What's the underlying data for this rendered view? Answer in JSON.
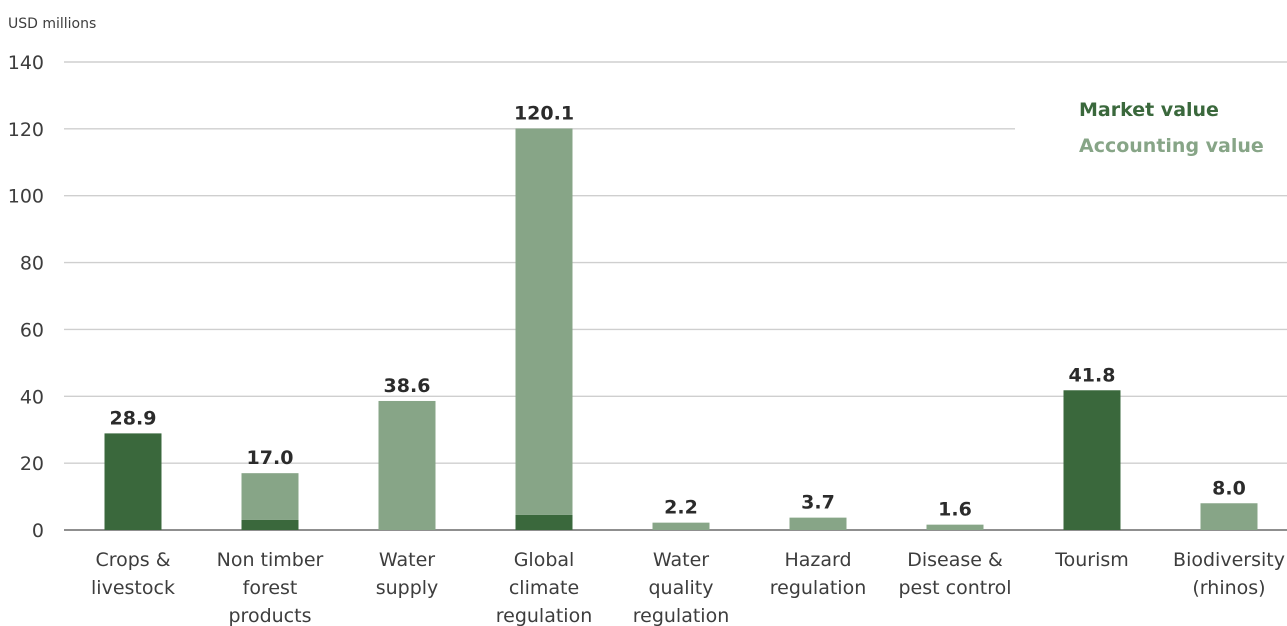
{
  "chart_data": {
    "type": "bar",
    "stacked": true,
    "ylabel": "USD millions",
    "ylim": [
      0,
      140
    ],
    "yticks": [
      0,
      20,
      40,
      60,
      80,
      100,
      120,
      140
    ],
    "grid": true,
    "legend_position": "top-right",
    "categories": [
      [
        "Crops &",
        "livestock"
      ],
      [
        "Non timber",
        "forest",
        "products"
      ],
      [
        "Water",
        "supply"
      ],
      [
        "Global",
        "climate",
        "regulation"
      ],
      [
        "Water",
        "quality",
        "regulation"
      ],
      [
        "Hazard",
        "regulation"
      ],
      [
        "Disease &",
        "pest control"
      ],
      [
        "Tourism"
      ],
      [
        "Biodiversity",
        "(rhinos)"
      ]
    ],
    "series": [
      {
        "name": "Market value",
        "color": "#3a683c",
        "values": [
          28.9,
          3.0,
          0,
          4.5,
          0,
          0,
          0,
          41.8,
          0
        ]
      },
      {
        "name": "Accounting value",
        "color": "#87a587",
        "values": [
          0,
          14.0,
          38.6,
          115.6,
          2.2,
          3.7,
          1.6,
          0,
          8.0
        ]
      }
    ],
    "totals": [
      28.9,
      17.0,
      38.6,
      120.1,
      2.2,
      3.7,
      1.6,
      41.8,
      8.0
    ],
    "total_labels": [
      "28.9",
      "17.0",
      "38.6",
      "120.1",
      "2.2",
      "3.7",
      "1.6",
      "41.8",
      "8.0"
    ]
  }
}
